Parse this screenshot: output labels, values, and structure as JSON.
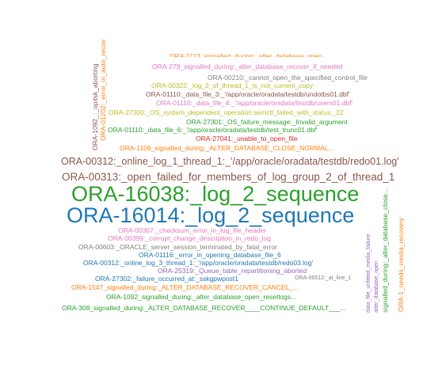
{
  "palette": {
    "pink": "#e377c2",
    "gray": "#7f7f7f",
    "olive": "#bcbd22",
    "green": "#2ca02c",
    "red": "#d62728",
    "orange": "#ff7f0e",
    "brown": "#8c564b",
    "blue": "#1f77b4",
    "purple": "#9467bd",
    "cyan": "#17becf"
  },
  "words": [
    {
      "text": "ORA-16038:_log_2_sequence",
      "color": "#2ca02c"
    },
    {
      "text": "ORA-16014:_log_2_sequence",
      "color": "#1f77b4"
    },
    {
      "text": "ORA-00313:_open_failed_for_members_of_log_group_2_of_thread_1",
      "color": "#8c564b"
    },
    {
      "text": "ORA-00312:_online_log_1_thread_1:_'/app/oracle/oradata/testdb/redo01.log'",
      "color": "#8c564b"
    },
    {
      "text": "ORA-1109_signalled_during:_ALTER_DATABASE_CLOSE_NORMAL...",
      "color": "#ff7f0e"
    },
    {
      "text": "ORA-27041:_unable_to_open_file",
      "color": "#d62728"
    },
    {
      "text": "ORA-01110:_data_file_6:_'/app/oracle/oradata/testdb/test_trunc01.dbf'",
      "color": "#2ca02c"
    },
    {
      "text": "ORA-27301:_OS_failure_message:_Invalid_argument",
      "color": "#2ca02c"
    },
    {
      "text": "ORA-27300:_OS_system_dependent_operation:semctl_failed_with_status:_22",
      "color": "#bcbd22"
    },
    {
      "text": "ORA-01110:_data_file_4:_'/app/oracle/oradata/testdb/users01.dbf'",
      "color": "#e377c2"
    },
    {
      "text": "ORA-01110:_data_file_3:_'/app/oracle/oradata/testdb/undotbs01.dbf'",
      "color": "#8c564b"
    },
    {
      "text": "ORA-00322:_log_2_of_thread_1_is_not_current_copy",
      "color": "#bcbd22"
    },
    {
      "text": "ORA-00210:_cannot_open_the_specified_control_file",
      "color": "#7f7f7f"
    },
    {
      "text": "ORA-279_signalled_during:_alter_database_recover_if_needed",
      "color": "#e377c2"
    },
    {
      "text": "ORA-1113_signalled_during:_alter_database_open...",
      "color": "#ff7f0e"
    },
    {
      "text": "ORA-00367:_checksum_error_in_log_file_header",
      "color": "#e377c2"
    },
    {
      "text": "ORA-00399:_corrupt_change_description_in_redo_log",
      "color": "#e377c2"
    },
    {
      "text": "ORA-00603:_ORACLE_server_session_terminated_by_fatal_error",
      "color": "#7f7f7f"
    },
    {
      "text": "ORA-01116:_error_in_opening_database_file_6",
      "color": "#1f77b4"
    },
    {
      "text": "ORA-00312:_online_log_3_thread_1:_'/app/oracle/oradata/testdb/redo03.log'",
      "color": "#1f77b4"
    },
    {
      "text": "ORA-25319:_Queue_table_repartitioning_aborted",
      "color": "#9467bd"
    },
    {
      "text": "ORA-27302:_failure_occurred_at:_sskgpwpost1",
      "color": "#1f77b4"
    },
    {
      "text": "ORA-06512:_at_line_1",
      "color": "#7f7f7f"
    },
    {
      "text": "ORA-1547_signalled_during:_ALTER_DATABASE_RECOVER_CANCEL_...",
      "color": "#ff7f0e"
    },
    {
      "text": "ORA-1092_signalled_during:_alter_database_open_resetlogs...",
      "color": "#2ca02c"
    },
    {
      "text": "ORA-308_signalled_during:_ALTER_DATABASE_RECOVER____CONTINUE_DEFAULT___...",
      "color": "#2ca02c"
    },
    {
      "text": "ORA-1092_:_opitsk_aborting",
      "color": "#8c564b"
    },
    {
      "text": "ORA-01202:_error_in_auto_recov",
      "color": "#ff7f0e"
    },
    {
      "text": "ORA-1_needs_media_recovery",
      "color": "#ff7f0e"
    },
    {
      "text": "signalled_during:_alter_database_close...",
      "color": "#2ca02c"
    },
    {
      "text": "alter_database_open",
      "color": "#9467bd"
    },
    {
      "text": "data_file_unfitted_media_failure",
      "color": "#9467bd"
    }
  ]
}
